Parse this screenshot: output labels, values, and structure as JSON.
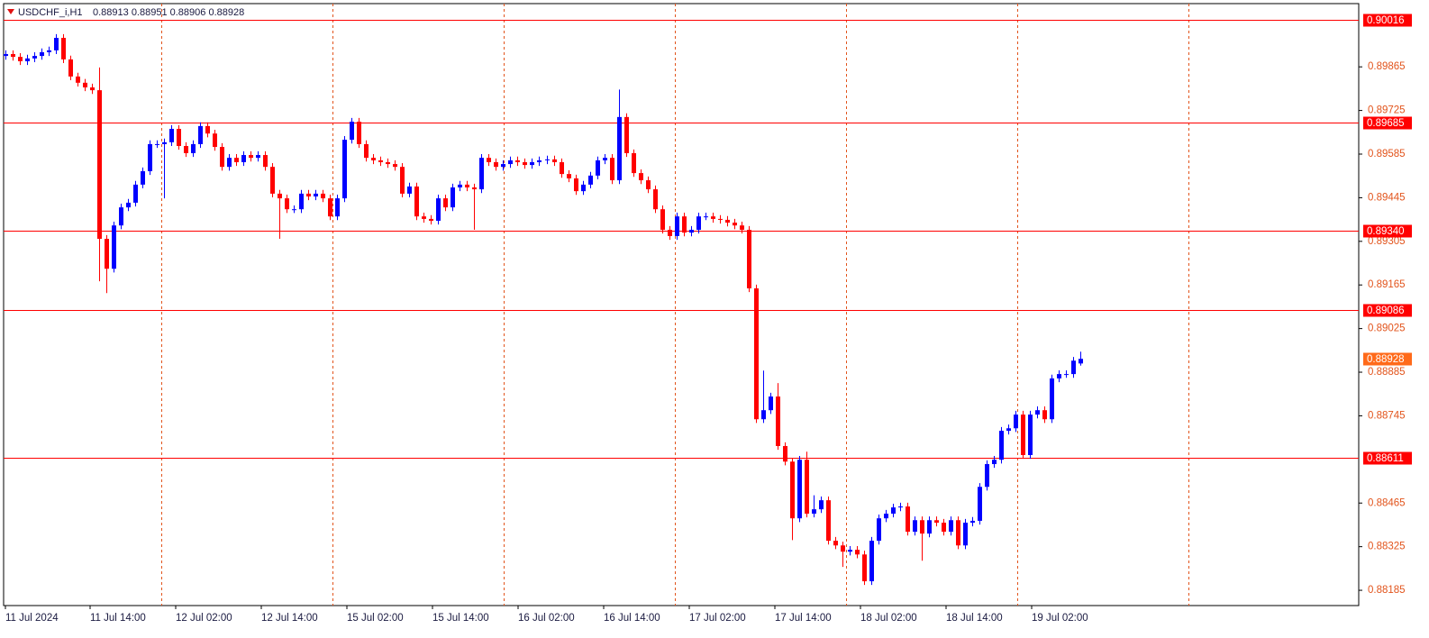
{
  "chart_data": {
    "type": "candlestick",
    "title": "USDCHF_i,H1",
    "ohlc_text": "0.88913 0.88951 0.88906 0.88928",
    "up_color": "#0000ff",
    "down_color": "#ff0000",
    "level_color": "#ff0000",
    "current_color": "#ff6a1a",
    "axis_color": "#e2541c",
    "ylim": [
      0.88136,
      0.90068
    ],
    "yticks": [
      0.89865,
      0.89725,
      0.89585,
      0.89445,
      0.89305,
      0.89165,
      0.89025,
      0.88885,
      0.88745,
      0.88465,
      0.88325,
      0.88185
    ],
    "levels": [
      0.90016,
      0.89685,
      {
        "value": 0.8934,
        "label": "0.89340"
      },
      0.89086,
      0.88611
    ],
    "current_price": 0.88928,
    "x_labels": [
      "11 Jul 2024",
      "11 Jul 14:00",
      "12 Jul 02:00",
      "12 Jul 14:00",
      "15 Jul 02:00",
      "15 Jul 14:00",
      "16 Jul 02:00",
      "16 Jul 14:00",
      "17 Jul 02:00",
      "17 Jul 14:00",
      "18 Jul 02:00",
      "18 Jul 14:00",
      "19 Jul 02:00"
    ],
    "open": [
      0.899,
      0.89906,
      0.89897,
      0.89883,
      0.89892,
      0.899,
      0.89912,
      0.89918,
      0.89958,
      0.89889,
      0.89834,
      0.89814,
      0.89799,
      0.8979,
      0.89313,
      0.89217,
      0.89356,
      0.89414,
      0.89429,
      0.89487,
      0.8953,
      0.89617,
      0.89617,
      0.89623,
      0.89666,
      0.89611,
      0.89588,
      0.89617,
      0.89675,
      0.89651,
      0.89608,
      0.89544,
      0.89573,
      0.89559,
      0.89582,
      0.89573,
      0.89582,
      0.89544,
      0.89458,
      0.89443,
      0.89408,
      0.89408,
      0.89458,
      0.89449,
      0.89458,
      0.89443,
      0.89385,
      0.89443,
      0.89631,
      0.89689,
      0.89617,
      0.89573,
      0.89565,
      0.89559,
      0.89553,
      0.89544,
      0.89458,
      0.89481,
      0.89385,
      0.89377,
      0.89371,
      0.89443,
      0.89414,
      0.89478,
      0.89487,
      0.89478,
      0.89472,
      0.89573,
      0.89559,
      0.89544,
      0.89553,
      0.89565,
      0.89559,
      0.8955,
      0.89559,
      0.89565,
      0.89568,
      0.89559,
      0.89521,
      0.89507,
      0.89466,
      0.89487,
      0.89516,
      0.89565,
      0.89573,
      0.89501,
      0.89704,
      0.89588,
      0.89524,
      0.89501,
      0.89472,
      0.89408,
      0.89342,
      0.89322,
      0.89385,
      0.89333,
      0.89342,
      0.89385,
      0.89385,
      0.89377,
      0.89374,
      0.89365,
      0.89356,
      0.89342,
      0.89154,
      0.88734,
      0.88763,
      0.88807,
      0.88648,
      0.88598,
      0.88416,
      0.88604,
      0.88431,
      0.88445,
      0.88474,
      0.88344,
      0.88329,
      0.88309,
      0.88315,
      0.883,
      0.88214,
      0.88344,
      0.88416,
      0.88431,
      0.88451,
      0.88454,
      0.88373,
      0.8841,
      0.88367,
      0.8841,
      0.88402,
      0.88373,
      0.8841,
      0.88329,
      0.88402,
      0.88408,
      0.88517,
      0.8859,
      0.88604,
      0.88697,
      0.88705,
      0.88749,
      0.88619,
      0.88749,
      0.88763,
      0.88734,
      0.88865,
      0.88879,
      0.88879,
      0.88913
    ],
    "high": [
      0.89918,
      0.89918,
      0.89909,
      0.89904,
      0.89912,
      0.89924,
      0.8993,
      0.8997,
      0.8997,
      0.89901,
      0.89846,
      0.89826,
      0.89811,
      0.89863,
      0.89325,
      0.89368,
      0.89426,
      0.89441,
      0.89499,
      0.89542,
      0.89629,
      0.89629,
      0.89635,
      0.89678,
      0.89678,
      0.89623,
      0.89629,
      0.89687,
      0.89687,
      0.89663,
      0.8962,
      0.89585,
      0.89585,
      0.89594,
      0.89594,
      0.89594,
      0.89594,
      0.89556,
      0.8947,
      0.89455,
      0.8942,
      0.8947,
      0.8947,
      0.8947,
      0.8947,
      0.89455,
      0.89455,
      0.89643,
      0.89701,
      0.89701,
      0.89629,
      0.89585,
      0.89577,
      0.89571,
      0.89565,
      0.89556,
      0.89493,
      0.89493,
      0.89397,
      0.89389,
      0.89455,
      0.89455,
      0.8949,
      0.89499,
      0.89499,
      0.8949,
      0.89585,
      0.89585,
      0.89571,
      0.89565,
      0.89577,
      0.89577,
      0.89571,
      0.89571,
      0.89577,
      0.8958,
      0.8958,
      0.89571,
      0.89533,
      0.89519,
      0.89499,
      0.89528,
      0.89577,
      0.89585,
      0.89585,
      0.89792,
      0.89716,
      0.896,
      0.89536,
      0.89513,
      0.89484,
      0.8942,
      0.89354,
      0.89397,
      0.89397,
      0.89354,
      0.89397,
      0.89397,
      0.89397,
      0.89389,
      0.89386,
      0.89377,
      0.89368,
      0.89354,
      0.89166,
      0.8889,
      0.88819,
      0.8885,
      0.8866,
      0.8861,
      0.88616,
      0.8863,
      0.8849,
      0.88486,
      0.88486,
      0.88356,
      0.88341,
      0.88327,
      0.88327,
      0.88312,
      0.88356,
      0.88428,
      0.88443,
      0.88463,
      0.88466,
      0.88466,
      0.88422,
      0.88422,
      0.88422,
      0.88422,
      0.88414,
      0.88422,
      0.88422,
      0.88414,
      0.8842,
      0.88529,
      0.88602,
      0.88616,
      0.88709,
      0.88717,
      0.88761,
      0.88761,
      0.88761,
      0.88775,
      0.88775,
      0.88877,
      0.88891,
      0.88891,
      0.88934,
      0.88951
    ],
    "low": [
      0.89888,
      0.89885,
      0.89871,
      0.89871,
      0.8988,
      0.89888,
      0.899,
      0.89906,
      0.89877,
      0.89822,
      0.89802,
      0.89787,
      0.89778,
      0.89177,
      0.89139,
      0.89205,
      0.89344,
      0.89402,
      0.89417,
      0.89475,
      0.89518,
      0.89605,
      0.89443,
      0.89611,
      0.89599,
      0.89576,
      0.89576,
      0.89605,
      0.89639,
      0.89596,
      0.89532,
      0.89532,
      0.89547,
      0.89547,
      0.89561,
      0.89561,
      0.89532,
      0.89446,
      0.89313,
      0.89396,
      0.89396,
      0.89396,
      0.89437,
      0.89437,
      0.89431,
      0.89373,
      0.89373,
      0.89431,
      0.89619,
      0.89605,
      0.89561,
      0.89553,
      0.89547,
      0.89541,
      0.89532,
      0.89446,
      0.89446,
      0.89373,
      0.89365,
      0.89359,
      0.89359,
      0.89402,
      0.89402,
      0.89466,
      0.89466,
      0.89342,
      0.8946,
      0.89547,
      0.89532,
      0.89532,
      0.89541,
      0.89547,
      0.89538,
      0.89538,
      0.89547,
      0.89553,
      0.89547,
      0.89509,
      0.89495,
      0.89454,
      0.89454,
      0.89475,
      0.89504,
      0.89553,
      0.89489,
      0.89489,
      0.89576,
      0.89512,
      0.89489,
      0.8946,
      0.89396,
      0.8933,
      0.8931,
      0.8931,
      0.89321,
      0.89321,
      0.8933,
      0.89373,
      0.89365,
      0.89362,
      0.89353,
      0.89344,
      0.8933,
      0.89142,
      0.88722,
      0.88722,
      0.88751,
      0.88636,
      0.88586,
      0.88346,
      0.88404,
      0.88419,
      0.88419,
      0.88433,
      0.88332,
      0.88317,
      0.8826,
      0.88297,
      0.88288,
      0.88202,
      0.88202,
      0.88332,
      0.88404,
      0.88419,
      0.88439,
      0.88361,
      0.88361,
      0.8828,
      0.88355,
      0.8839,
      0.88361,
      0.88361,
      0.88317,
      0.88317,
      0.8839,
      0.88396,
      0.88505,
      0.88578,
      0.88592,
      0.88685,
      0.88693,
      0.88607,
      0.88607,
      0.88737,
      0.88722,
      0.88722,
      0.88853,
      0.88867,
      0.88867,
      0.88906
    ],
    "close": [
      0.89906,
      0.89897,
      0.89883,
      0.89892,
      0.899,
      0.89912,
      0.89918,
      0.89958,
      0.89889,
      0.89834,
      0.89814,
      0.89799,
      0.8979,
      0.89313,
      0.89217,
      0.89356,
      0.89414,
      0.89429,
      0.89487,
      0.8953,
      0.89617,
      0.89617,
      0.89623,
      0.89666,
      0.89611,
      0.89588,
      0.89617,
      0.89675,
      0.89651,
      0.89608,
      0.89544,
      0.89573,
      0.89559,
      0.89582,
      0.89573,
      0.89582,
      0.89544,
      0.89458,
      0.89443,
      0.89408,
      0.89408,
      0.89458,
      0.89449,
      0.89458,
      0.89443,
      0.89385,
      0.89443,
      0.89631,
      0.89689,
      0.89617,
      0.89573,
      0.89565,
      0.89559,
      0.89553,
      0.89544,
      0.89458,
      0.89481,
      0.89385,
      0.89377,
      0.89371,
      0.89443,
      0.89414,
      0.89478,
      0.89487,
      0.89478,
      0.89472,
      0.89573,
      0.89559,
      0.89544,
      0.89553,
      0.89565,
      0.89559,
      0.8955,
      0.89559,
      0.89565,
      0.89568,
      0.89559,
      0.89521,
      0.89507,
      0.89466,
      0.89487,
      0.89516,
      0.89565,
      0.89573,
      0.89501,
      0.89704,
      0.89588,
      0.89524,
      0.89501,
      0.89472,
      0.89408,
      0.89342,
      0.89322,
      0.89385,
      0.89333,
      0.89342,
      0.89385,
      0.89385,
      0.89377,
      0.89374,
      0.89365,
      0.89356,
      0.89342,
      0.89154,
      0.88734,
      0.88763,
      0.88807,
      0.88648,
      0.88598,
      0.88416,
      0.88604,
      0.88431,
      0.88445,
      0.88474,
      0.88344,
      0.88329,
      0.88309,
      0.88315,
      0.883,
      0.88214,
      0.88344,
      0.88416,
      0.88431,
      0.88451,
      0.88454,
      0.88373,
      0.8841,
      0.88367,
      0.8841,
      0.88402,
      0.88373,
      0.8841,
      0.88329,
      0.88402,
      0.88408,
      0.88517,
      0.8859,
      0.88604,
      0.88697,
      0.88705,
      0.88749,
      0.88619,
      0.88749,
      0.88763,
      0.88734,
      0.88865,
      0.88879,
      0.88879,
      0.88922,
      0.88928
    ]
  }
}
